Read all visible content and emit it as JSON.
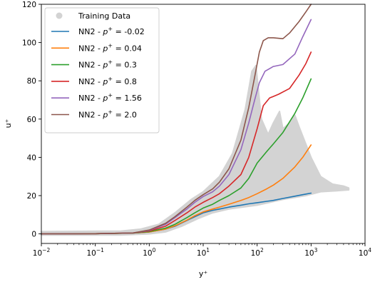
{
  "chart_data": {
    "type": "line",
    "title": "",
    "xlabel": "y⁺",
    "ylabel": "u⁺",
    "xscale": "log",
    "xlim": [
      0.01,
      10000
    ],
    "ylim": [
      -5,
      120
    ],
    "grid": false,
    "legend_position": "top-left",
    "x_ticks": [
      {
        "value": 0.01,
        "base": "10",
        "exp": "−2"
      },
      {
        "value": 0.1,
        "base": "10",
        "exp": "−1"
      },
      {
        "value": 1,
        "base": "10",
        "exp": "0"
      },
      {
        "value": 10,
        "base": "10",
        "exp": "1"
      },
      {
        "value": 100,
        "base": "10",
        "exp": "2"
      },
      {
        "value": 1000,
        "base": "10",
        "exp": "3"
      },
      {
        "value": 10000,
        "base": "10",
        "exp": "4"
      }
    ],
    "y_ticks": [
      {
        "value": 0,
        "label": "0"
      },
      {
        "value": 20,
        "label": "20"
      },
      {
        "value": 40,
        "label": "40"
      },
      {
        "value": 60,
        "label": "60"
      },
      {
        "value": 80,
        "label": "80"
      },
      {
        "value": 100,
        "label": "100"
      },
      {
        "value": 120,
        "label": "120"
      }
    ],
    "training_data": {
      "name": "Training Data",
      "color": "#d3d3d3",
      "band_upper": [
        [
          0.01,
          1.2
        ],
        [
          0.3,
          1.5
        ],
        [
          0.7,
          2.5
        ],
        [
          1.5,
          5
        ],
        [
          3,
          11
        ],
        [
          6,
          18
        ],
        [
          10,
          22
        ],
        [
          20,
          30
        ],
        [
          35,
          42
        ],
        [
          60,
          65
        ],
        [
          80,
          85
        ],
        [
          95,
          88
        ],
        [
          120,
          60
        ],
        [
          160,
          52
        ],
        [
          200,
          58
        ],
        [
          260,
          64
        ],
        [
          300,
          55
        ],
        [
          400,
          58
        ],
        [
          500,
          62
        ],
        [
          600,
          56
        ],
        [
          1000,
          40
        ],
        [
          1500,
          30
        ],
        [
          2500,
          26
        ],
        [
          4000,
          25
        ],
        [
          5000,
          24
        ]
      ],
      "band_lower": [
        [
          0.01,
          -0.6
        ],
        [
          0.3,
          -0.6
        ],
        [
          1,
          0
        ],
        [
          2,
          1
        ],
        [
          4,
          4
        ],
        [
          8,
          8
        ],
        [
          15,
          11
        ],
        [
          30,
          13
        ],
        [
          100,
          15
        ],
        [
          300,
          18
        ],
        [
          800,
          20
        ],
        [
          1500,
          22
        ],
        [
          3000,
          22.5
        ],
        [
          5000,
          23
        ]
      ]
    },
    "series": [
      {
        "name_prefix": "NN2 - ",
        "p_symbol": "p",
        "p_exp": "+",
        "name_value": " = -0.02",
        "color": "#1f77b4",
        "x": [
          0.01,
          0.1,
          0.5,
          1,
          2,
          3,
          5,
          7,
          10,
          15,
          20,
          30,
          50,
          70,
          100,
          150,
          200,
          300,
          500,
          700,
          1000
        ],
        "y": [
          0,
          0.1,
          0.4,
          1,
          2.5,
          4,
          7,
          9,
          11,
          12.3,
          13,
          14,
          15,
          15.7,
          16.3,
          17,
          17.5,
          18.5,
          19.7,
          20.5,
          21.3
        ]
      },
      {
        "name_prefix": "NN2 - ",
        "p_symbol": "p",
        "p_exp": "+",
        "name_value": " = 0.04",
        "color": "#ff7f0e",
        "x": [
          0.01,
          0.1,
          0.5,
          1,
          2,
          3,
          5,
          7,
          10,
          15,
          20,
          30,
          50,
          70,
          100,
          150,
          200,
          300,
          500,
          700,
          1000
        ],
        "y": [
          0,
          0.1,
          0.4,
          1,
          2.5,
          4.2,
          7.2,
          9.5,
          11.5,
          13,
          14,
          15.5,
          17.5,
          19,
          21,
          23.5,
          25.5,
          29,
          35,
          40,
          46.5
        ]
      },
      {
        "name_prefix": "NN2 - ",
        "p_symbol": "p",
        "p_exp": "+",
        "name_value": " = 0.3",
        "color": "#2ca02c",
        "x": [
          0.01,
          0.1,
          0.5,
          1,
          2,
          3,
          5,
          7,
          10,
          15,
          20,
          30,
          50,
          70,
          100,
          150,
          200,
          300,
          500,
          700,
          1000
        ],
        "y": [
          0,
          0.1,
          0.4,
          1.2,
          3,
          5,
          8.5,
          11,
          13.5,
          15.5,
          17.5,
          20,
          24,
          29,
          37,
          43,
          47,
          53,
          63,
          71,
          81
        ]
      },
      {
        "name_prefix": "NN2 - ",
        "p_symbol": "p",
        "p_exp": "+",
        "name_value": " = 0.8",
        "color": "#d62728",
        "x": [
          0.01,
          0.1,
          0.5,
          1,
          2,
          3,
          5,
          7,
          10,
          15,
          20,
          30,
          50,
          70,
          100,
          130,
          170,
          250,
          400,
          600,
          800,
          1000
        ],
        "y": [
          0,
          0.1,
          0.5,
          1.5,
          4,
          7,
          11,
          14,
          16.5,
          19,
          21,
          25,
          31,
          40,
          55,
          67,
          71,
          73,
          76,
          83,
          89,
          95
        ]
      },
      {
        "name_prefix": "NN2 - ",
        "p_symbol": "p",
        "p_exp": "+",
        "name_value": " = 1.56",
        "color": "#9467bd",
        "x": [
          0.01,
          0.1,
          0.5,
          1,
          2,
          3,
          5,
          7,
          10,
          15,
          20,
          30,
          50,
          70,
          90,
          110,
          140,
          200,
          300,
          500,
          700,
          1000
        ],
        "y": [
          0,
          0.1,
          0.5,
          1.8,
          5,
          8.5,
          13,
          16.5,
          19.5,
          22,
          25,
          31,
          44,
          58,
          70,
          79,
          85,
          87.5,
          88.5,
          94,
          103,
          112
        ]
      },
      {
        "name_prefix": "NN2 - ",
        "p_symbol": "p",
        "p_exp": "+",
        "name_value": " = 2.0",
        "color": "#8c564b",
        "x": [
          0.01,
          0.1,
          0.5,
          1,
          2,
          3,
          5,
          7,
          10,
          15,
          20,
          30,
          50,
          70,
          90,
          110,
          130,
          160,
          200,
          300,
          400,
          600,
          800,
          1000
        ],
        "y": [
          0,
          0.1,
          0.5,
          2,
          5.5,
          9,
          14,
          17.5,
          20.5,
          23.5,
          27,
          34,
          49,
          66,
          82,
          95,
          101,
          102.5,
          102.5,
          102,
          105,
          111,
          116,
          120
        ]
      }
    ]
  }
}
